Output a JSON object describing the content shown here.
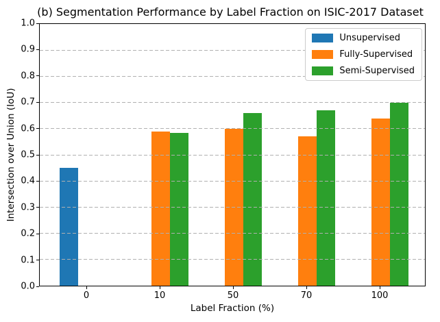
{
  "chart_data": {
    "type": "bar",
    "title": "(b) Segmentation Performance by Label Fraction on ISIC-2017 Dataset",
    "xlabel": "Label Fraction (%)",
    "ylabel": "Intersection over Union (IoU)",
    "categories": [
      "0",
      "10",
      "50",
      "70",
      "100"
    ],
    "series": [
      {
        "name": "Unsupervised",
        "color": "#1f77b4",
        "values": [
          0.45,
          null,
          null,
          null,
          null
        ]
      },
      {
        "name": "Fully-Supervised",
        "color": "#ff7f0e",
        "values": [
          null,
          0.59,
          0.6,
          0.57,
          0.64
        ]
      },
      {
        "name": "Semi-Supervised",
        "color": "#2ca02c",
        "values": [
          null,
          0.585,
          0.66,
          0.67,
          0.7
        ]
      }
    ],
    "ylim": [
      0.0,
      1.0
    ],
    "yticks": [
      "0.0",
      "0.1",
      "0.2",
      "0.3",
      "0.4",
      "0.5",
      "0.6",
      "0.7",
      "0.8",
      "0.9",
      "1.0"
    ],
    "grid": "horizontal-dashed",
    "grid_color": "#b0b0b0",
    "legend_position": "upper-right"
  }
}
